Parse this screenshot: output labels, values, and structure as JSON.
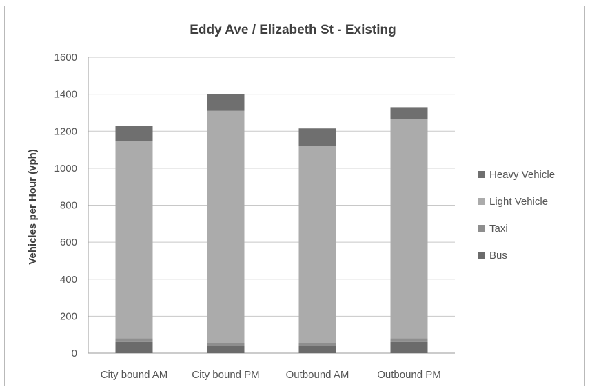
{
  "chart_data": {
    "type": "bar",
    "stacked": true,
    "title": "Eddy Ave / Elizabeth St - Existing",
    "xlabel": "",
    "ylabel": "Vehicles per Hour (vph)",
    "ylim": [
      0,
      1600
    ],
    "yticks": [
      "0",
      "200",
      "400",
      "600",
      "800",
      "1000",
      "1200",
      "1400",
      "1600"
    ],
    "categories": [
      "City bound AM",
      "City bound PM",
      "Outbound AM",
      "Outbound PM"
    ],
    "series": [
      {
        "name": "Bus",
        "color": "#6b6b6b",
        "values": [
          60,
          40,
          40,
          60
        ]
      },
      {
        "name": "Taxi",
        "color": "#8e8e8e",
        "values": [
          20,
          15,
          15,
          20
        ]
      },
      {
        "name": "Light Vehicle",
        "color": "#ababab",
        "values": [
          1065,
          1255,
          1065,
          1185
        ]
      },
      {
        "name": "Heavy Vehicle",
        "color": "#6f6f6f",
        "values": [
          85,
          90,
          95,
          65
        ]
      }
    ],
    "legend_order": [
      "Heavy Vehicle",
      "Light Vehicle",
      "Taxi",
      "Bus"
    ],
    "legend_position": "right",
    "grid": true
  }
}
